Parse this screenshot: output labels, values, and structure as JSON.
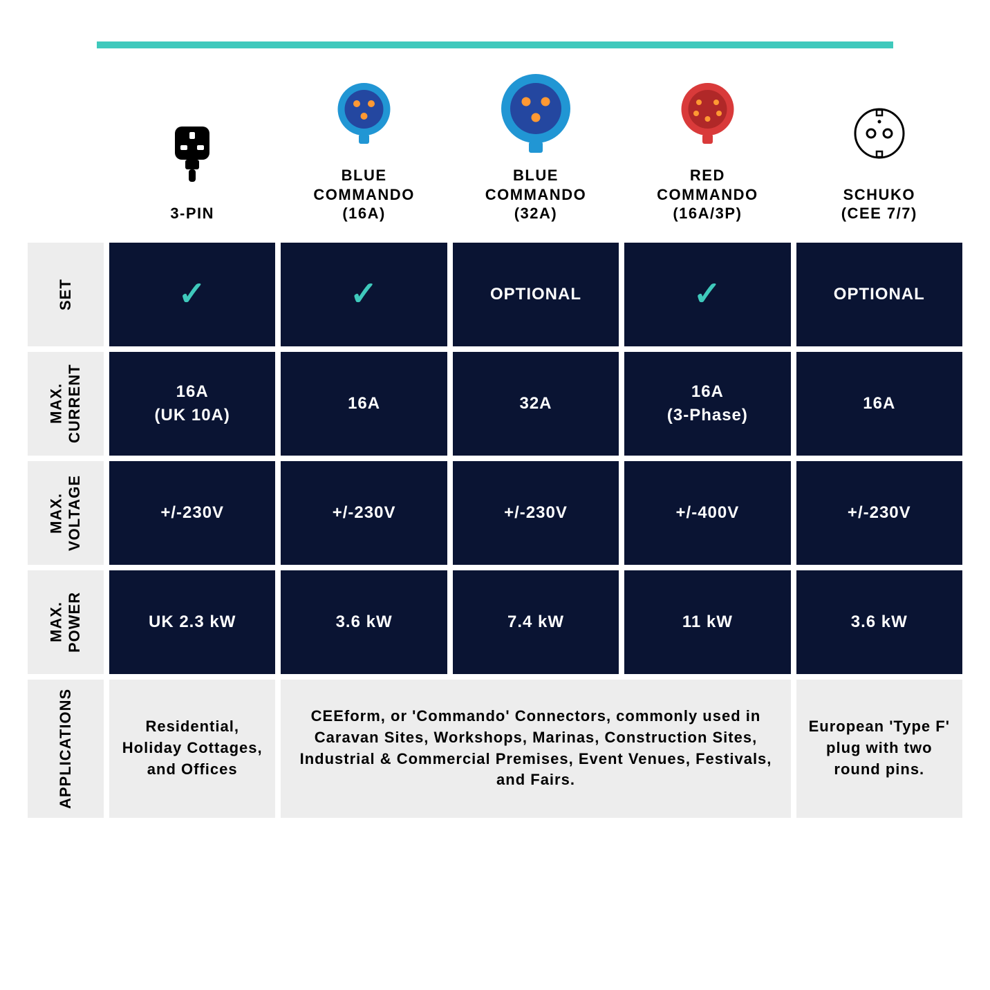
{
  "colors": {
    "accent": "#3fc9bc",
    "dark_cell_bg": "#0a1433",
    "light_cell_bg": "#ededed",
    "text_light": "#ffffff",
    "text_dark": "#000000",
    "blue_commando": "#2196d4",
    "blue_commando_inner": "#2447a0",
    "red_commando_outer": "#d93a3a",
    "red_commando_inner": "#b02828",
    "pin_orange": "#ff9933",
    "schuko_outline": "#000000"
  },
  "columns": [
    {
      "id": "3pin",
      "label": "3-PIN"
    },
    {
      "id": "blue16",
      "label": "BLUE\nCOMMANDO\n(16A)"
    },
    {
      "id": "blue32",
      "label": "BLUE\nCOMMANDO\n(32A)"
    },
    {
      "id": "red16",
      "label": "RED\nCOMMANDO\n(16A/3P)"
    },
    {
      "id": "schuko",
      "label": "SCHUKO\n(CEE 7/7)"
    }
  ],
  "rows": {
    "set": {
      "label": "SET",
      "values": [
        "check",
        "check",
        "OPTIONAL",
        "check",
        "OPTIONAL"
      ]
    },
    "maxCurrent": {
      "label": "MAX.\nCURRENT",
      "values": [
        "16A\n(UK 10A)",
        "16A",
        "32A",
        "16A\n(3-Phase)",
        "16A"
      ]
    },
    "maxVoltage": {
      "label": "MAX.\nVOLTAGE",
      "values": [
        "+/-230V",
        "+/-230V",
        "+/-230V",
        "+/-400V",
        "+/-230V"
      ]
    },
    "maxPower": {
      "label": "MAX.\nPOWER",
      "values": [
        "UK 2.3 kW",
        "3.6 kW",
        "7.4 kW",
        "11 kW",
        "3.6 kW"
      ]
    },
    "applications": {
      "label": "APPLICATIONS",
      "cells": [
        {
          "span": 1,
          "text": "Residential, Holiday Cottages, and Offices"
        },
        {
          "span": 3,
          "text": "CEEform, or 'Commando' Connectors, commonly used in Caravan Sites, Workshops, Marinas, Construction Sites, Industrial & Commercial Premises, Event Venues, Festivals, and Fairs."
        },
        {
          "span": 1,
          "text": "European 'Type F' plug with two round pins."
        }
      ]
    }
  },
  "check_glyph": "✓"
}
